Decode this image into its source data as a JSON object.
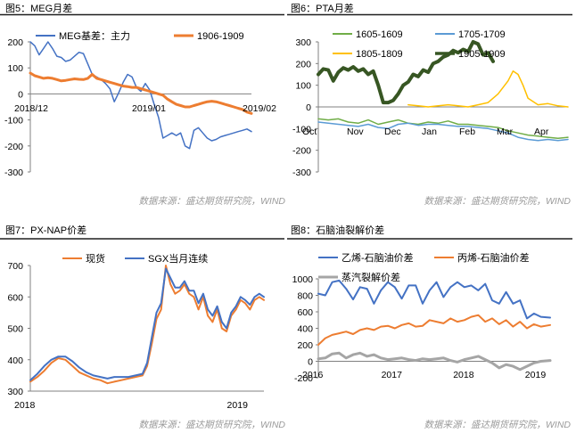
{
  "source_text": "数据来源：盛达期货研究院，WIND",
  "colors": {
    "blue": "#4472C4",
    "orange": "#ED7D31",
    "green": "#70AD47",
    "lightblue": "#5B9BD5",
    "yellow": "#FFC000",
    "darkgreen": "#375623",
    "gray": "#A5A5A5",
    "rule": "#1F1F1F"
  },
  "chart_data": [
    {
      "id": "fig5",
      "type": "line",
      "caption": "图5：MEG月差",
      "ylim": [
        -300,
        200
      ],
      "yticks": [
        -300,
        -200,
        -100,
        0,
        100,
        200
      ],
      "xlim": [
        0,
        100
      ],
      "xtick_labels": [
        {
          "label": "2018/12",
          "x": 0
        },
        {
          "label": "2019/01",
          "x": 50
        },
        {
          "label": "2019/02",
          "x": 100
        }
      ],
      "series": [
        {
          "name": "MEG基差：主力",
          "color": "blue",
          "width": 1.5,
          "x": [
            0,
            2,
            4,
            6,
            8,
            10,
            12,
            14,
            16,
            18,
            20,
            22,
            24,
            26,
            28,
            30,
            32,
            34,
            36,
            38,
            40,
            42,
            44,
            46,
            48,
            50,
            52,
            54,
            56,
            58,
            60,
            62,
            64,
            66,
            68,
            70,
            72,
            74,
            76,
            78,
            80,
            82,
            84,
            86,
            88,
            90,
            92,
            94,
            96,
            98,
            100
          ],
          "y": [
            200,
            185,
            150,
            175,
            200,
            175,
            145,
            140,
            125,
            130,
            145,
            160,
            155,
            115,
            75,
            65,
            55,
            40,
            20,
            -30,
            5,
            45,
            75,
            65,
            25,
            10,
            40,
            15,
            -40,
            -90,
            -170,
            -160,
            -150,
            -160,
            -150,
            -200,
            -210,
            -140,
            -130,
            -150,
            -170,
            -180,
            -175,
            -165,
            -160,
            -155,
            -150,
            -145,
            -140,
            -135,
            -145
          ]
        },
        {
          "name": "1906-1909",
          "color": "orange",
          "width": 3,
          "x": [
            0,
            2,
            4,
            6,
            8,
            10,
            12,
            14,
            16,
            18,
            20,
            22,
            24,
            26,
            28,
            30,
            32,
            34,
            36,
            38,
            40,
            42,
            44,
            46,
            48,
            50,
            52,
            54,
            56,
            58,
            60,
            62,
            64,
            66,
            68,
            70,
            72,
            74,
            76,
            78,
            80,
            82,
            84,
            86,
            88,
            90,
            92,
            94,
            96,
            98,
            100
          ],
          "y": [
            80,
            70,
            65,
            60,
            62,
            60,
            55,
            50,
            52,
            55,
            58,
            56,
            55,
            60,
            75,
            60,
            55,
            50,
            45,
            40,
            35,
            30,
            28,
            25,
            25,
            20,
            15,
            10,
            5,
            0,
            -5,
            -20,
            -30,
            -40,
            -45,
            -50,
            -50,
            -45,
            -40,
            -35,
            -30,
            -28,
            -30,
            -35,
            -40,
            -45,
            -50,
            -55,
            -60,
            -70,
            -75
          ]
        }
      ]
    },
    {
      "id": "fig6",
      "type": "line",
      "caption": "图6：PTA月差",
      "ylim": [
        -300,
        300
      ],
      "yticks": [
        -300,
        -200,
        -100,
        0,
        100,
        200,
        300
      ],
      "xlim": [
        0,
        100
      ],
      "xtick_labels": [
        {
          "label": "Oct",
          "x": 0
        },
        {
          "label": "Nov",
          "x": 15
        },
        {
          "label": "Dec",
          "x": 30
        },
        {
          "label": "Jan",
          "x": 45
        },
        {
          "label": "Feb",
          "x": 60
        },
        {
          "label": "Mar",
          "x": 75
        },
        {
          "label": "Apr",
          "x": 90
        }
      ],
      "series": [
        {
          "name": "1605-1609",
          "color": "green",
          "width": 1.5,
          "x": [
            0,
            4,
            8,
            12,
            16,
            20,
            24,
            28,
            32,
            36,
            40,
            44,
            48,
            52,
            56,
            60,
            64,
            68,
            72,
            76,
            80,
            84,
            88,
            92,
            96,
            100
          ],
          "y": [
            -55,
            -60,
            -55,
            -70,
            -75,
            -60,
            -80,
            -70,
            -60,
            -75,
            -80,
            -70,
            -75,
            -65,
            -80,
            -80,
            -85,
            -90,
            -95,
            -110,
            -120,
            -130,
            -135,
            -140,
            -145,
            -140
          ]
        },
        {
          "name": "1705-1709",
          "color": "lightblue",
          "width": 1.5,
          "x": [
            0,
            4,
            8,
            12,
            16,
            20,
            24,
            28,
            32,
            36,
            40,
            44,
            48,
            52,
            56,
            60,
            64,
            68,
            72,
            76,
            80,
            84,
            88,
            92,
            96,
            100
          ],
          "y": [
            -70,
            -75,
            -80,
            -85,
            -90,
            -80,
            -95,
            -100,
            -80,
            -75,
            -85,
            -80,
            -80,
            -85,
            -90,
            -90,
            -95,
            -100,
            -110,
            -120,
            -140,
            -150,
            -155,
            -150,
            -155,
            -150
          ]
        },
        {
          "name": "1805-1809",
          "color": "yellow",
          "width": 1.5,
          "x": [
            36,
            40,
            44,
            48,
            52,
            56,
            60,
            64,
            68,
            72,
            76,
            78,
            80,
            82,
            84,
            88,
            92,
            96,
            100
          ],
          "y": [
            10,
            5,
            0,
            5,
            10,
            5,
            0,
            10,
            20,
            60,
            120,
            165,
            150,
            100,
            40,
            10,
            15,
            5,
            0
          ]
        },
        {
          "name": "1905-1909",
          "color": "darkgreen",
          "width": 4,
          "x": [
            0,
            2,
            4,
            6,
            8,
            10,
            12,
            14,
            16,
            18,
            20,
            22,
            24,
            26,
            28,
            30,
            32,
            34,
            36,
            38,
            40,
            42,
            44,
            46,
            48,
            50,
            52,
            54,
            56,
            58,
            60,
            62,
            64,
            66,
            68,
            70
          ],
          "y": [
            150,
            175,
            170,
            120,
            160,
            180,
            170,
            185,
            165,
            175,
            150,
            165,
            100,
            20,
            20,
            30,
            60,
            100,
            115,
            150,
            140,
            170,
            160,
            200,
            210,
            230,
            240,
            260,
            250,
            265,
            255,
            300,
            290,
            240,
            250,
            210
          ]
        }
      ]
    },
    {
      "id": "fig7",
      "type": "line",
      "caption": "图7：PX-NAP价差",
      "ylim": [
        300,
        700
      ],
      "yticks": [
        300,
        400,
        500,
        600,
        700
      ],
      "xlim": [
        0,
        100
      ],
      "xtick_labels": [
        {
          "label": "2018",
          "x": 0
        },
        {
          "label": "2019",
          "x": 88
        }
      ],
      "series": [
        {
          "name": "现货",
          "color": "orange",
          "width": 2,
          "x": [
            0,
            3,
            6,
            9,
            12,
            15,
            18,
            21,
            24,
            27,
            30,
            33,
            36,
            39,
            42,
            45,
            48,
            50,
            52,
            54,
            56,
            58,
            60,
            62,
            64,
            66,
            68,
            70,
            72,
            74,
            76,
            78,
            80,
            82,
            84,
            86,
            88,
            90,
            92,
            94,
            96,
            98,
            100
          ],
          "y": [
            330,
            345,
            365,
            390,
            405,
            400,
            380,
            360,
            350,
            340,
            335,
            325,
            330,
            335,
            340,
            345,
            350,
            380,
            450,
            530,
            560,
            700,
            640,
            610,
            620,
            640,
            610,
            600,
            560,
            600,
            540,
            520,
            560,
            500,
            490,
            540,
            560,
            590,
            580,
            560,
            590,
            600,
            590
          ]
        },
        {
          "name": "SGX当月连续",
          "color": "blue",
          "width": 2,
          "x": [
            0,
            3,
            6,
            9,
            12,
            15,
            18,
            21,
            24,
            27,
            30,
            33,
            36,
            39,
            42,
            45,
            48,
            50,
            52,
            54,
            56,
            58,
            60,
            62,
            64,
            66,
            68,
            70,
            72,
            74,
            76,
            78,
            80,
            82,
            84,
            86,
            88,
            90,
            92,
            94,
            96,
            98,
            100
          ],
          "y": [
            335,
            355,
            380,
            400,
            410,
            410,
            395,
            375,
            360,
            350,
            345,
            340,
            345,
            345,
            345,
            350,
            355,
            390,
            470,
            550,
            580,
            690,
            660,
            630,
            630,
            650,
            620,
            620,
            580,
            610,
            560,
            540,
            570,
            520,
            500,
            550,
            570,
            600,
            590,
            575,
            600,
            610,
            600
          ]
        }
      ]
    },
    {
      "id": "fig8",
      "type": "line",
      "caption": "图8：石脑油裂解价差",
      "ylim": [
        -200,
        1000
      ],
      "yticks": [
        -200,
        0,
        200,
        400,
        600,
        800,
        1000
      ],
      "xlim": [
        0,
        100
      ],
      "xtick_labels": [
        {
          "label": "2016",
          "x": 0
        },
        {
          "label": "2017",
          "x": 31
        },
        {
          "label": "2018",
          "x": 62
        },
        {
          "label": "2019",
          "x": 93
        }
      ],
      "series": [
        {
          "name": "乙烯-石脑油价差",
          "color": "blue",
          "width": 2,
          "x": [
            0,
            3,
            6,
            9,
            12,
            15,
            18,
            21,
            24,
            27,
            30,
            33,
            36,
            39,
            42,
            45,
            48,
            51,
            54,
            57,
            60,
            63,
            66,
            69,
            72,
            75,
            78,
            81,
            84,
            87,
            90,
            93,
            96,
            100
          ],
          "y": [
            820,
            800,
            960,
            980,
            880,
            750,
            900,
            880,
            700,
            860,
            960,
            900,
            760,
            920,
            920,
            700,
            860,
            960,
            780,
            900,
            960,
            900,
            920,
            860,
            940,
            740,
            700,
            840,
            700,
            740,
            520,
            580,
            540,
            530
          ]
        },
        {
          "name": "丙烯-石脑油价差",
          "color": "orange",
          "width": 2,
          "x": [
            0,
            3,
            6,
            9,
            12,
            15,
            18,
            21,
            24,
            27,
            30,
            33,
            36,
            39,
            42,
            45,
            48,
            51,
            54,
            57,
            60,
            63,
            66,
            69,
            72,
            75,
            78,
            81,
            84,
            87,
            90,
            93,
            96,
            100
          ],
          "y": [
            200,
            280,
            320,
            340,
            360,
            330,
            380,
            400,
            380,
            420,
            430,
            400,
            440,
            460,
            420,
            430,
            500,
            480,
            460,
            520,
            480,
            500,
            540,
            560,
            480,
            520,
            450,
            500,
            420,
            480,
            400,
            450,
            420,
            440
          ]
        },
        {
          "name": "蒸汽裂解价差",
          "color": "gray",
          "width": 3,
          "x": [
            0,
            3,
            6,
            9,
            12,
            15,
            18,
            21,
            24,
            27,
            30,
            33,
            36,
            39,
            42,
            45,
            48,
            51,
            54,
            57,
            60,
            63,
            66,
            69,
            72,
            75,
            78,
            81,
            84,
            87,
            90,
            93,
            96,
            100
          ],
          "y": [
            30,
            40,
            90,
            100,
            40,
            80,
            100,
            60,
            80,
            40,
            20,
            30,
            40,
            20,
            10,
            30,
            20,
            30,
            40,
            10,
            -10,
            20,
            40,
            60,
            20,
            -20,
            -80,
            -40,
            -60,
            -100,
            -60,
            -20,
            0,
            10
          ]
        }
      ]
    }
  ]
}
